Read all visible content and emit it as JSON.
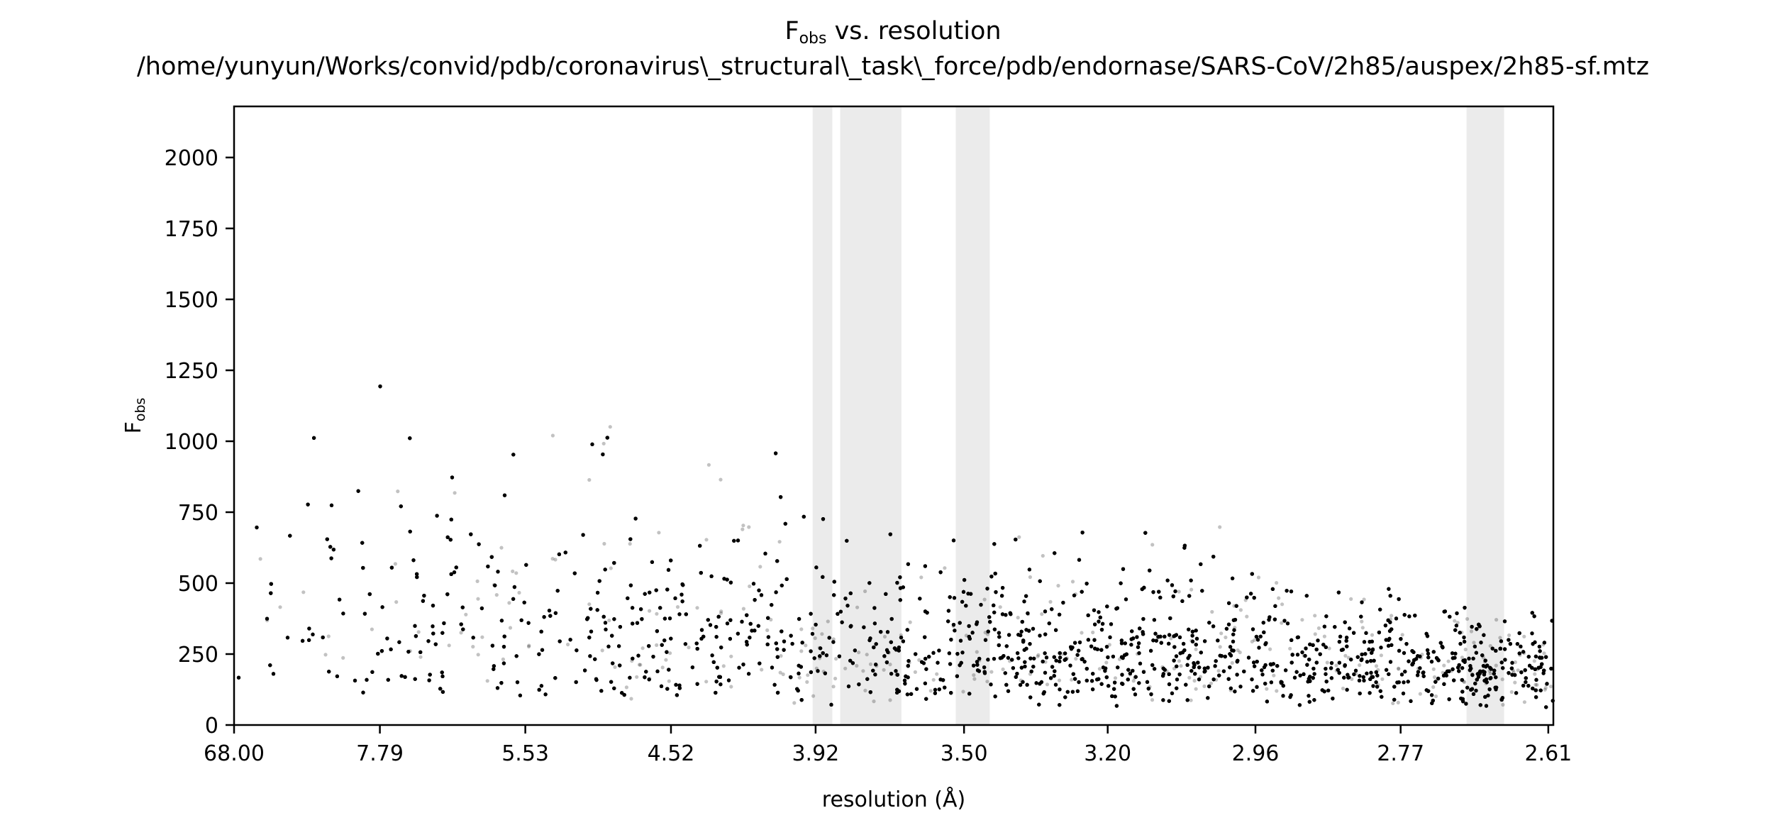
{
  "chart_data": {
    "type": "scatter",
    "title": {
      "symbol_main": "F",
      "symbol_sub": "obs",
      "rest": " vs. resolution",
      "path": "/home/yunyun/Works/convid/pdb/coronavirus\\_structural\\_task\\_force/pdb/endornase/SARS-CoV/2h85/auspex/2h85-sf.mtz"
    },
    "xlabel": "resolution (Å)",
    "ylabel": {
      "main": "F",
      "sub": "obs"
    },
    "x_scale": "1/d^2",
    "x_ticks": [
      68.0,
      7.79,
      5.53,
      4.52,
      3.92,
      3.5,
      3.2,
      2.96,
      2.77,
      2.61
    ],
    "x_tick_labels": [
      "68.00",
      "7.79",
      "5.53",
      "4.52",
      "3.92",
      "3.50",
      "3.20",
      "2.96",
      "2.77",
      "2.61"
    ],
    "xlim": [
      68.0,
      2.605
    ],
    "y_ticks": [
      0,
      250,
      500,
      750,
      1000,
      1250,
      1500,
      1750,
      2000
    ],
    "y_tick_labels": [
      "0",
      "250",
      "500",
      "750",
      "1000",
      "1250",
      "1500",
      "1750",
      "2000"
    ],
    "ylim": [
      0,
      2180
    ],
    "ice_ring_bands": [
      {
        "from": 3.93,
        "to": 3.865
      },
      {
        "from": 3.84,
        "to": 3.66
      },
      {
        "from": 3.52,
        "to": 3.44
      },
      {
        "from": 2.695,
        "to": 2.655
      }
    ],
    "point_color": "#000000",
    "band_color": "#ebebeb",
    "grid": false,
    "legend": "none"
  }
}
